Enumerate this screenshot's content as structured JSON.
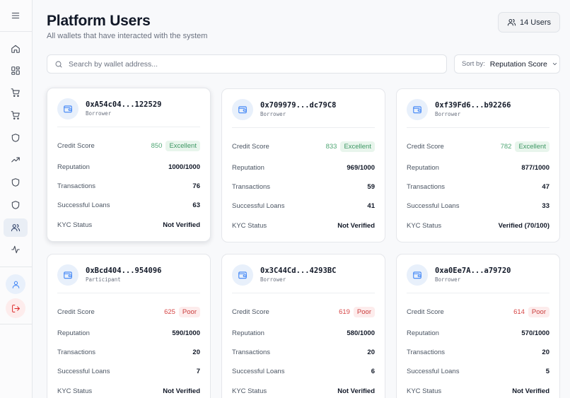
{
  "header": {
    "title": "Platform Users",
    "subtitle": "All wallets that have interacted with the system",
    "user_count": "14 Users"
  },
  "search": {
    "placeholder": "Search by wallet address...",
    "value": ""
  },
  "sort": {
    "label": "Sort by:",
    "value": "Reputation Score"
  },
  "labels": {
    "credit_score": "Credit Score",
    "reputation": "Reputation",
    "transactions": "Transactions",
    "successful_loans": "Successful Loans",
    "kyc_status": "KYC Status"
  },
  "users": [
    {
      "address": "0xA54c04...122529",
      "role": "Borrower",
      "score": "850",
      "rating": "Excellent",
      "rating_level": "good",
      "reputation": "1000/1000",
      "transactions": "76",
      "successful_loans": "63",
      "kyc": "Not Verified"
    },
    {
      "address": "0x709979...dc79C8",
      "role": "Borrower",
      "score": "833",
      "rating": "Excellent",
      "rating_level": "good",
      "reputation": "969/1000",
      "transactions": "59",
      "successful_loans": "41",
      "kyc": "Not Verified"
    },
    {
      "address": "0xf39Fd6...b92266",
      "role": "Borrower",
      "score": "782",
      "rating": "Excellent",
      "rating_level": "good",
      "reputation": "877/1000",
      "transactions": "47",
      "successful_loans": "33",
      "kyc": "Verified (70/100)"
    },
    {
      "address": "0xBcd404...954096",
      "role": "Participant",
      "score": "625",
      "rating": "Poor",
      "rating_level": "poor",
      "reputation": "590/1000",
      "transactions": "20",
      "successful_loans": "7",
      "kyc": "Not Verified"
    },
    {
      "address": "0x3C44Cd...4293BC",
      "role": "Borrower",
      "score": "619",
      "rating": "Poor",
      "rating_level": "poor",
      "reputation": "580/1000",
      "transactions": "20",
      "successful_loans": "6",
      "kyc": "Not Verified"
    },
    {
      "address": "0xa0Ee7A...a79720",
      "role": "Borrower",
      "score": "614",
      "rating": "Poor",
      "rating_level": "poor",
      "reputation": "570/1000",
      "transactions": "20",
      "successful_loans": "5",
      "kyc": "Not Verified"
    }
  ],
  "icons": {
    "sidebar": [
      "menu-icon",
      "home-icon",
      "dashboard-icon",
      "cart-icon",
      "cart-icon",
      "shield-icon",
      "trending-up-icon",
      "shield-icon",
      "shield-icon",
      "users-icon",
      "activity-icon"
    ],
    "profile": "user-icon",
    "logout": "logout-icon",
    "wallet": "wallet-icon"
  },
  "colors": {
    "accent": "#3b82f6",
    "excellent": "#4fa674",
    "poor": "#d64545",
    "logout": "#dc2626"
  }
}
